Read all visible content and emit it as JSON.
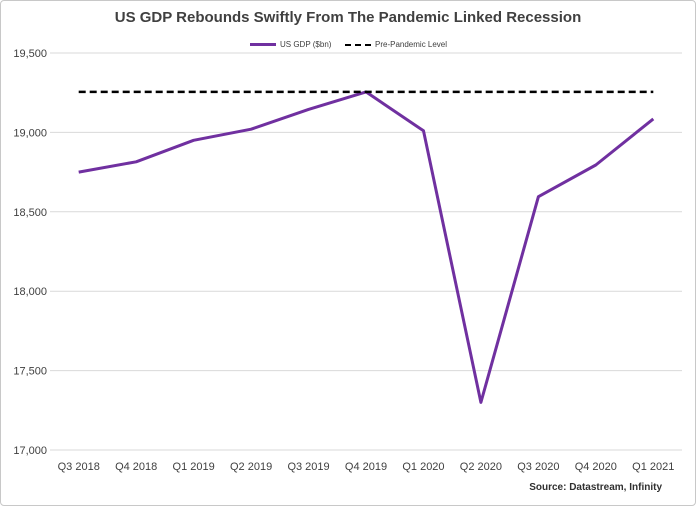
{
  "chart_data": {
    "type": "line",
    "title": "US GDP Rebounds Swiftly From The Pandemic Linked Recession",
    "categories": [
      "Q3 2018",
      "Q4 2018",
      "Q1 2019",
      "Q2 2019",
      "Q3 2019",
      "Q4 2019",
      "Q1 2020",
      "Q2 2020",
      "Q3 2020",
      "Q4 2020",
      "Q1 2021"
    ],
    "series": [
      {
        "name": "US GDP ($bn)",
        "values": [
          18750,
          18815,
          18950,
          19020,
          19145,
          19255,
          19010,
          17300,
          18595,
          18795,
          19085
        ],
        "color": "#7030a0",
        "style": "solid"
      },
      {
        "name": "Pre-Pandemic Level",
        "values": [
          19255,
          19255,
          19255,
          19255,
          19255,
          19255,
          19255,
          19255,
          19255,
          19255,
          19255
        ],
        "color": "#000000",
        "style": "dashed"
      }
    ],
    "ylim": [
      17000,
      19500
    ],
    "yticks": [
      17000,
      17500,
      18000,
      18500,
      19000,
      19500
    ],
    "ytick_labels": [
      "17,000",
      "17,500",
      "18,000",
      "18,500",
      "19,000",
      "19,500"
    ],
    "grid": true,
    "legend_position": "top",
    "source": "Source: Datastream, Infinity"
  }
}
